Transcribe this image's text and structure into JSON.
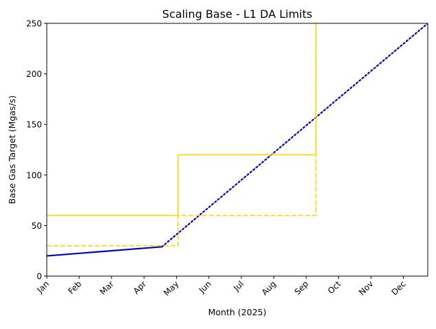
{
  "chart_data": {
    "type": "line",
    "title": "Scaling Base - L1 DA Limits",
    "xlabel": "Month (2025)",
    "ylabel": "Base Gas Target (Mgas/s)",
    "x_domain_months": [
      0,
      11.75
    ],
    "ylim": [
      0,
      250
    ],
    "categories": [
      "Jan",
      "Feb",
      "Mar",
      "Apr",
      "May",
      "Jun",
      "Jul",
      "Aug",
      "Sep",
      "Oct",
      "Nov",
      "Dec"
    ],
    "y_ticks": [
      0,
      50,
      100,
      150,
      200,
      250
    ],
    "grid": false,
    "legend": "none",
    "series": [
      {
        "name": "base-gas-target-actual",
        "style": "solid",
        "color": "#0000c8",
        "x": [
          0,
          3.55
        ],
        "y": [
          20,
          29
        ]
      },
      {
        "name": "base-gas-target-projected",
        "style": "dotted",
        "color": "#0000c8",
        "x": [
          3.55,
          11.75
        ],
        "y": [
          29,
          250
        ]
      },
      {
        "name": "l1-da-limit-solid",
        "style": "solid",
        "color": "#ffd700",
        "x": [
          0,
          4.05,
          4.05,
          8.3,
          8.3
        ],
        "y": [
          60,
          60,
          120,
          120,
          250
        ]
      },
      {
        "name": "l1-da-limit-dashed",
        "style": "dashed",
        "color": "#ffd700",
        "x": [
          0,
          4.05,
          4.05,
          8.3,
          8.3
        ],
        "y": [
          30,
          30,
          60,
          60,
          250
        ]
      }
    ]
  }
}
